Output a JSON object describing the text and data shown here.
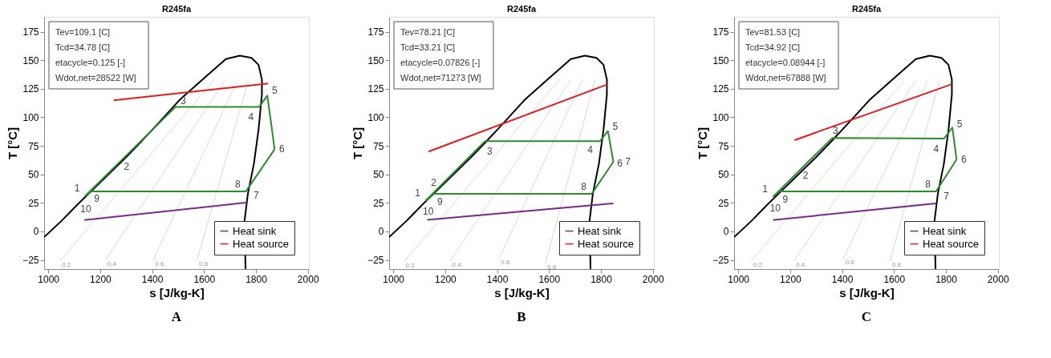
{
  "chart_data": [
    {
      "type": "line",
      "title": "R245fa",
      "subtitle": "A",
      "xlabel": "s [J/kg-K]",
      "ylabel": "T [°C]",
      "xlim": [
        984,
        2004
      ],
      "ylim": [
        -33,
        188
      ],
      "xticks": [
        1000,
        1200,
        1400,
        1600,
        1800,
        2000
      ],
      "yticks": [
        -25,
        0,
        25,
        50,
        75,
        100,
        125,
        150,
        175
      ],
      "grid": false,
      "legend": "bottom right",
      "series": [
        {
          "color": "#d9d9d9",
          "x": [
            1045,
            1640
          ],
          "values": [
            -26,
            133
          ]
        },
        {
          "color": "#d9d9d9",
          "x": [
            1220,
            1683
          ],
          "values": [
            -25,
            133
          ]
        },
        {
          "color": "#d9d9d9",
          "x": [
            1404,
            1729
          ],
          "values": [
            -25,
            132
          ]
        },
        {
          "color": "#d9d9d9",
          "x": [
            1573,
            1771
          ],
          "values": [
            -25,
            132
          ]
        },
        {
          "color": "#000000",
          "x": [
            984,
            1050,
            1110,
            1200,
            1300,
            1355,
            1429,
            1505,
            1604,
            1684,
            1738,
            1783,
            1810,
            1823,
            1823,
            1810,
            1792,
            1769,
            1756,
            1760
          ],
          "values": [
            -5,
            9,
            23,
            43,
            65,
            78,
            96,
            115,
            135,
            151,
            154,
            152,
            146,
            133,
            120,
            89,
            59,
            33,
            9,
            -33
          ]
        },
        {
          "color": "#2e8b2e",
          "x": [
            1142,
            1490,
            1812,
            1844,
            1872
          ],
          "values": [
            31,
            109,
            109,
            119,
            72
          ]
        },
        {
          "color": "#2e8b2e",
          "x": [
            1142,
            1165,
            1761,
            1872
          ],
          "values": [
            31,
            35,
            35,
            72
          ]
        },
        {
          "name": "Heat sink",
          "color": "#7b2a8c",
          "x": [
            1139,
            1768
          ],
          "values": [
            10,
            25.4
          ]
        },
        {
          "name": "Heat source",
          "color": "#e41a1c",
          "x": [
            1252,
            1847
          ],
          "values": [
            114.8,
            129.6
          ]
        }
      ],
      "annotations": [
        "Tev=109.1 [C]",
        "Tcd=34.78 [C]",
        "etacycle=0.125 [-]",
        "Wdot,net=28522 [W]",
        {
          "text": "1",
          "x": 1142,
          "y": 31
        },
        {
          "text": "2",
          "x": 1280,
          "y": 62
        },
        {
          "text": "3",
          "x": 1490,
          "y": 109
        },
        {
          "text": "4",
          "x": 1812,
          "y": 109
        },
        {
          "text": "5",
          "x": 1844,
          "y": 119
        },
        {
          "text": "6",
          "x": 1872,
          "y": 72
        },
        {
          "text": "7",
          "x": 1761,
          "y": 35
        },
        {
          "text": "8",
          "x": 1761,
          "y": 35
        },
        {
          "text": "9",
          "x": 1165,
          "y": 35
        },
        {
          "text": "10",
          "x": 1120,
          "y": 25
        },
        {
          "text": "0.2",
          "x": 1045,
          "y": -26
        },
        {
          "text": "0.4",
          "x": 1220,
          "y": -25
        },
        {
          "text": "0.6",
          "x": 1404,
          "y": -25
        },
        {
          "text": "0.8",
          "x": 1573,
          "y": -25
        }
      ]
    },
    {
      "type": "line",
      "title": "R245fa",
      "subtitle": "B",
      "xlabel": "s [J/kg-K]",
      "ylabel": "T [°C]",
      "xlim": [
        984,
        2004
      ],
      "ylim": [
        -33,
        188
      ],
      "xticks": [
        1000,
        1200,
        1400,
        1600,
        1800,
        2000
      ],
      "yticks": [
        -25,
        0,
        25,
        50,
        75,
        100,
        125,
        150,
        175
      ],
      "grid": false,
      "legend": "bottom right",
      "series": [
        {
          "color": "#d9d9d9",
          "x": [
            1040,
            1640
          ],
          "values": [
            -27,
            133
          ]
        },
        {
          "color": "#d9d9d9",
          "x": [
            1219,
            1684
          ],
          "values": [
            -26,
            133
          ]
        },
        {
          "color": "#d9d9d9",
          "x": [
            1407,
            1729
          ],
          "values": [
            -24,
            133
          ]
        },
        {
          "color": "#d9d9d9",
          "x": [
            1586,
            1778
          ],
          "values": [
            -28,
            133
          ]
        },
        {
          "color": "#000000",
          "x": [
            984,
            1050,
            1110,
            1200,
            1300,
            1355,
            1429,
            1505,
            1604,
            1684,
            1738,
            1783,
            1810,
            1823,
            1823,
            1810,
            1792,
            1769,
            1756,
            1760
          ],
          "values": [
            -5,
            9,
            23,
            43,
            65,
            78,
            96,
            115,
            135,
            151,
            154,
            152,
            146,
            133,
            120,
            89,
            59,
            33,
            9,
            -33
          ]
        },
        {
          "color": "#2e8b2e",
          "x": [
            1125,
            1353,
            1796,
            1827,
            1848
          ],
          "values": [
            27,
            79,
            79,
            88,
            61
          ]
        },
        {
          "color": "#2e8b2e",
          "x": [
            1125,
            1158,
            1765,
            1848
          ],
          "values": [
            27,
            33,
            33,
            61
          ]
        },
        {
          "name": "Heat sink",
          "color": "#7b2a8c",
          "x": [
            1131,
            1848
          ],
          "values": [
            10.2,
            24.6
          ]
        },
        {
          "name": "Heat source",
          "color": "#e41a1c",
          "x": [
            1136,
            1827
          ],
          "values": [
            70,
            129
          ]
        }
      ],
      "annotations": [
        "Tev=78.21 [C]",
        "Tcd=33.21 [C]",
        "etacycle=0.07826 [-]",
        "Wdot,net=71273 [W]",
        {
          "text": "1",
          "x": 1125,
          "y": 27
        },
        {
          "text": "2",
          "x": 1150,
          "y": 32.7
        },
        {
          "text": "3",
          "x": 1353,
          "y": 79
        },
        {
          "text": "4",
          "x": 1796,
          "y": 79
        },
        {
          "text": "5",
          "x": 1827,
          "y": 88
        },
        {
          "text": "6",
          "x": 1848,
          "y": 61
        },
        {
          "text": "7",
          "x": 1848,
          "y": 61
        },
        {
          "text": "8",
          "x": 1765,
          "y": 33
        },
        {
          "text": "9",
          "x": 1158,
          "y": 33
        },
        {
          "text": "10",
          "x": 1110,
          "y": 23
        },
        {
          "text": "0.2",
          "x": 1040,
          "y": -27
        },
        {
          "text": "0.4",
          "x": 1219,
          "y": -26
        },
        {
          "text": "0.6",
          "x": 1407,
          "y": -24
        },
        {
          "text": "0.8",
          "x": 1586,
          "y": -28
        }
      ]
    },
    {
      "type": "line",
      "title": "R245fa",
      "subtitle": "C",
      "xlabel": "s [J/kg-K]",
      "ylabel": "T [°C]",
      "xlim": [
        984,
        2004
      ],
      "ylim": [
        -33,
        188
      ],
      "xticks": [
        1000,
        1200,
        1400,
        1600,
        1800,
        2000
      ],
      "yticks": [
        -25,
        0,
        25,
        50,
        75,
        100,
        125,
        150,
        175
      ],
      "grid": false,
      "legend": "bottom right",
      "series": [
        {
          "color": "#d9d9d9",
          "x": [
            1050,
            1638
          ],
          "values": [
            -26,
            132
          ]
        },
        {
          "color": "#d9d9d9",
          "x": [
            1215,
            1684
          ],
          "values": [
            -26,
            132
          ]
        },
        {
          "color": "#d9d9d9",
          "x": [
            1405,
            1729
          ],
          "values": [
            -24,
            132
          ]
        },
        {
          "color": "#d9d9d9",
          "x": [
            1585,
            1775
          ],
          "values": [
            -26,
            132
          ]
        },
        {
          "color": "#000000",
          "x": [
            984,
            1050,
            1110,
            1200,
            1300,
            1355,
            1429,
            1505,
            1604,
            1684,
            1738,
            1783,
            1810,
            1823,
            1823,
            1810,
            1792,
            1769,
            1756,
            1760
          ],
          "values": [
            -5,
            9,
            23,
            43,
            65,
            78,
            96,
            115,
            135,
            151,
            154,
            152,
            146,
            133,
            120,
            89,
            59,
            33,
            9,
            -33
          ]
        },
        {
          "color": "#2e8b2e",
          "x": [
            1134,
            1362,
            1793,
            1825,
            1841
          ],
          "values": [
            30.4,
            81.8,
            81.4,
            91,
            63
          ]
        },
        {
          "color": "#2e8b2e",
          "x": [
            1134,
            1160,
            1762,
            1841
          ],
          "values": [
            30.4,
            35.1,
            35.1,
            63
          ]
        },
        {
          "name": "Heat sink",
          "color": "#7b2a8c",
          "x": [
            1134,
            1762
          ],
          "values": [
            10,
            24.6
          ]
        },
        {
          "name": "Heat source",
          "color": "#e41a1c",
          "x": [
            1217,
            1823
          ],
          "values": [
            80,
            129
          ]
        }
      ],
      "annotations": [
        "Tev=81.53 [C]",
        "Tcd=34.92 [C]",
        "etacycle=0.08944 [-]",
        "Wdot,net=67888 [W]",
        {
          "text": "1",
          "x": 1134,
          "y": 30.4
        },
        {
          "text": "2",
          "x": 1235,
          "y": 53.2
        },
        {
          "text": "3",
          "x": 1362,
          "y": 81.8
        },
        {
          "text": "4",
          "x": 1793,
          "y": 81.4
        },
        {
          "text": "5",
          "x": 1825,
          "y": 91
        },
        {
          "text": "6",
          "x": 1841,
          "y": 63
        },
        {
          "text": "7",
          "x": 1762,
          "y": 35.1
        },
        {
          "text": "8",
          "x": 1762,
          "y": 35.1
        },
        {
          "text": "9",
          "x": 1160,
          "y": 35.1
        },
        {
          "text": "10",
          "x": 1118,
          "y": 26
        },
        {
          "text": "0.2",
          "x": 1050,
          "y": -26
        },
        {
          "text": "0.4",
          "x": 1215,
          "y": -26
        },
        {
          "text": "0.6",
          "x": 1405,
          "y": -24
        },
        {
          "text": "0.8",
          "x": 1585,
          "y": -26
        }
      ]
    }
  ]
}
